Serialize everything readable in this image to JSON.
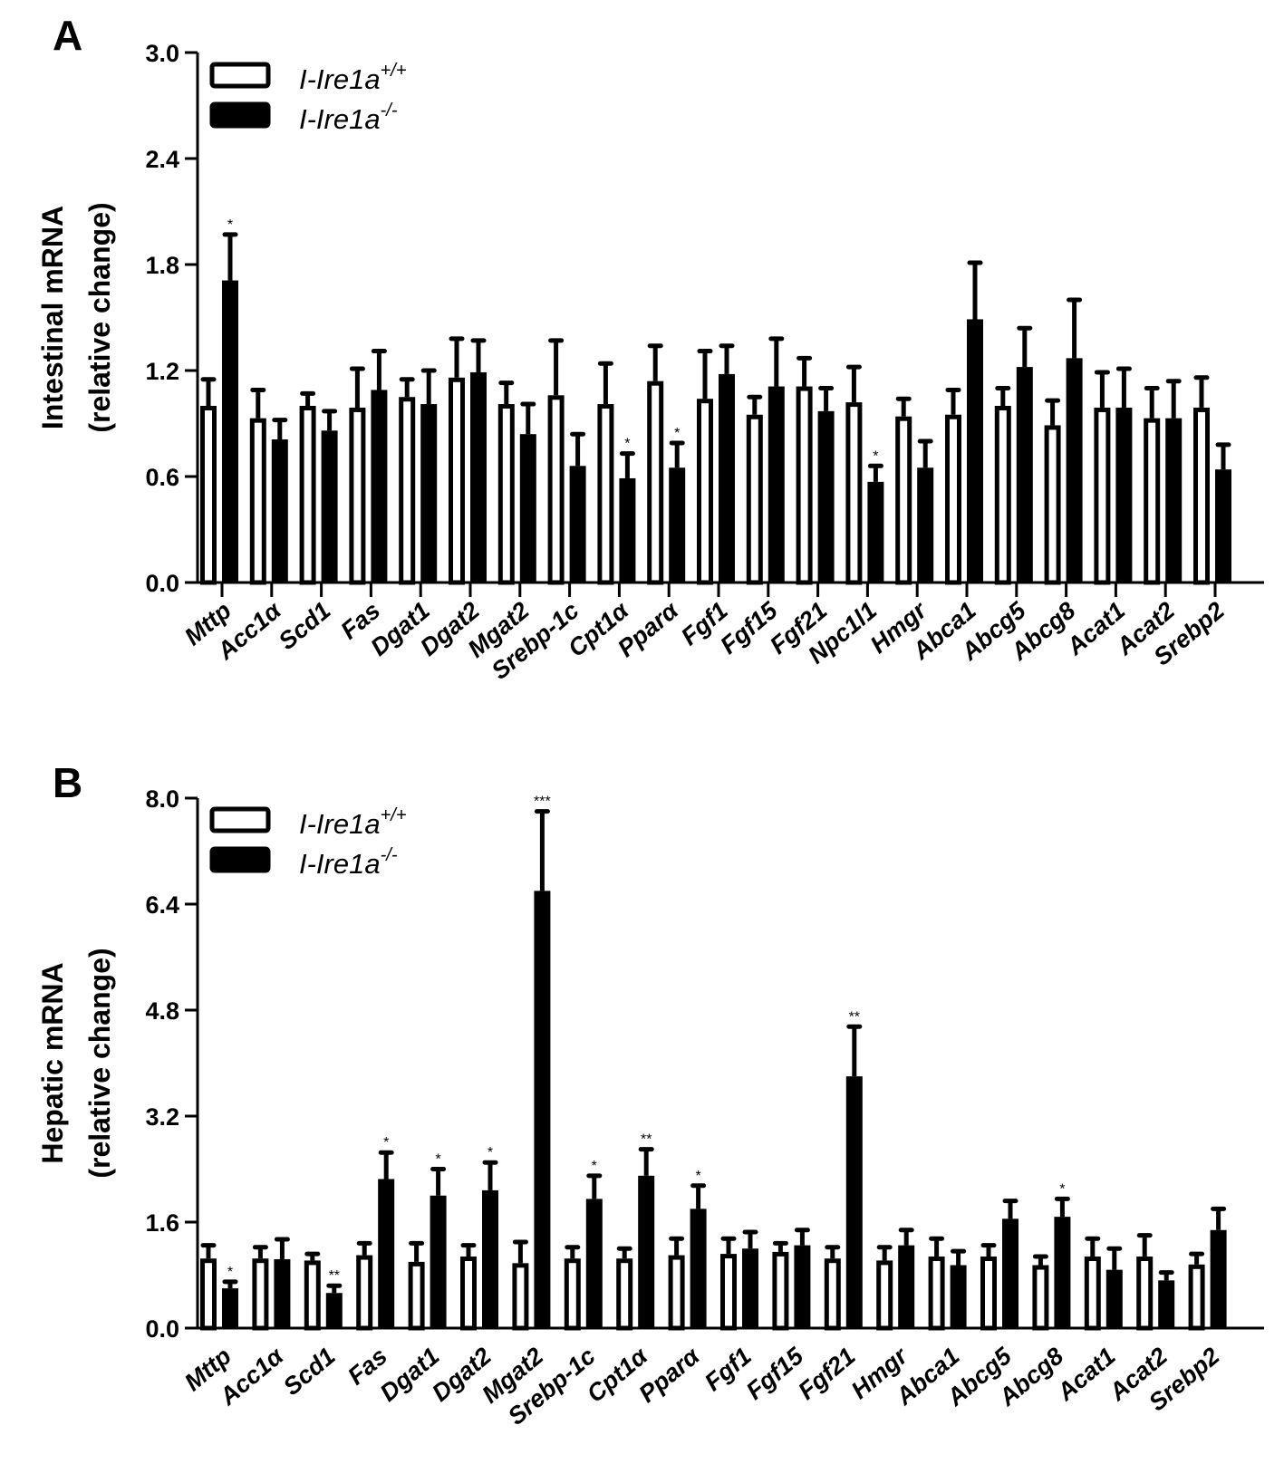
{
  "figure": {
    "legend": {
      "series": [
        {
          "name": "I-Ire1a",
          "superscript": "+/+",
          "fill": "#ffffff"
        },
        {
          "name": "I-Ire1a",
          "superscript": "-/-",
          "fill": "#000000"
        }
      ]
    }
  },
  "chart_data": [
    {
      "panel": "A",
      "type": "bar",
      "title": "",
      "xlabel": "",
      "ylabel": [
        "Intestinal mRNA",
        "(relative change)"
      ],
      "ylim": [
        0,
        3.0
      ],
      "yticks": [
        "0.0",
        "0.6",
        "1.2",
        "1.8",
        "2.4",
        "3.0"
      ],
      "grid": false,
      "legend_position": "top-left",
      "categories": [
        "Mttp",
        "Acc1α",
        "Scd1",
        "Fas",
        "Dgat1",
        "Dgat2",
        "Mgat2",
        "Srebp-1c",
        "Cpt1α",
        "Pparα",
        "Fgf1",
        "Fgf15",
        "Fgf21",
        "Npc1l1",
        "Hmgr",
        "Abca1",
        "Abcg5",
        "Abcg8",
        "Acat1",
        "Acat2",
        "Srebp2"
      ],
      "series": [
        {
          "name": "I-Ire1a+/+",
          "values": [
            1.0,
            0.93,
            1.0,
            0.99,
            1.05,
            1.16,
            1.01,
            1.06,
            1.01,
            1.14,
            1.04,
            0.95,
            1.11,
            1.02,
            0.94,
            0.95,
            1.0,
            0.89,
            0.99,
            0.93,
            0.99
          ],
          "error_top": [
            1.15,
            1.09,
            1.07,
            1.21,
            1.15,
            1.38,
            1.13,
            1.37,
            1.24,
            1.34,
            1.31,
            1.05,
            1.27,
            1.22,
            1.04,
            1.09,
            1.1,
            1.03,
            1.19,
            1.1,
            1.16
          ]
        },
        {
          "name": "I-Ire1a-/-",
          "values": [
            1.71,
            0.81,
            0.86,
            1.09,
            1.01,
            1.19,
            0.84,
            0.66,
            0.59,
            0.65,
            1.18,
            1.11,
            0.97,
            0.57,
            0.65,
            1.49,
            1.22,
            1.27,
            0.99,
            0.93,
            0.64
          ],
          "error_top": [
            1.97,
            0.92,
            0.97,
            1.31,
            1.2,
            1.37,
            1.01,
            0.84,
            0.73,
            0.79,
            1.34,
            1.38,
            1.1,
            0.66,
            0.8,
            1.81,
            1.44,
            1.6,
            1.21,
            1.14,
            0.78
          ]
        }
      ],
      "significance": [
        "*",
        "",
        "",
        "",
        "",
        "",
        "",
        "",
        "*",
        "*",
        "",
        "",
        "",
        "*",
        "",
        "",
        "",
        "",
        "",
        "",
        ""
      ]
    },
    {
      "panel": "B",
      "type": "bar",
      "title": "",
      "xlabel": "",
      "ylabel": [
        "Hepatic mRNA",
        "(relative change)"
      ],
      "ylim": [
        0,
        8.0
      ],
      "yticks": [
        "0.0",
        "1.6",
        "3.2",
        "4.8",
        "6.4",
        "8.0"
      ],
      "grid": false,
      "legend_position": "top-left",
      "categories": [
        "Mttp",
        "Acc1α",
        "Scd1",
        "Fas",
        "Dgat1",
        "Dgat2",
        "Mgat2",
        "Srebp-1c",
        "Cpt1α",
        "Pparα",
        "Fgf1",
        "Fgf15",
        "Fgf21",
        "Hmgr",
        "Abca1",
        "Abcg5",
        "Abcg8",
        "Acat1",
        "Acat2",
        "Srebp2"
      ],
      "series": [
        {
          "name": "I-Ire1a+/+",
          "values": [
            1.05,
            1.05,
            1.02,
            1.1,
            1.0,
            1.08,
            0.98,
            1.05,
            1.05,
            1.1,
            1.12,
            1.15,
            1.05,
            1.02,
            1.08,
            1.08,
            0.95,
            1.08,
            1.08,
            0.96
          ],
          "error_top": [
            1.25,
            1.22,
            1.12,
            1.28,
            1.28,
            1.25,
            1.3,
            1.22,
            1.2,
            1.35,
            1.35,
            1.28,
            1.22,
            1.22,
            1.35,
            1.25,
            1.08,
            1.35,
            1.4,
            1.12
          ]
        },
        {
          "name": "I-Ire1a-/-",
          "values": [
            0.6,
            1.04,
            0.53,
            2.25,
            2.0,
            2.08,
            6.6,
            1.95,
            2.3,
            1.8,
            1.2,
            1.25,
            3.8,
            1.25,
            0.95,
            1.65,
            1.68,
            0.88,
            0.72,
            1.48
          ],
          "error_top": [
            0.7,
            1.34,
            0.64,
            2.65,
            2.4,
            2.5,
            7.8,
            2.3,
            2.7,
            2.15,
            1.45,
            1.48,
            4.55,
            1.48,
            1.16,
            1.92,
            1.95,
            1.2,
            0.84,
            1.8
          ]
        }
      ],
      "significance": [
        "*",
        "",
        "**",
        "*",
        "*",
        "*",
        "***",
        "*",
        "**",
        "*",
        "",
        "",
        "**",
        "",
        "",
        "",
        "*",
        "",
        "",
        ""
      ]
    }
  ]
}
